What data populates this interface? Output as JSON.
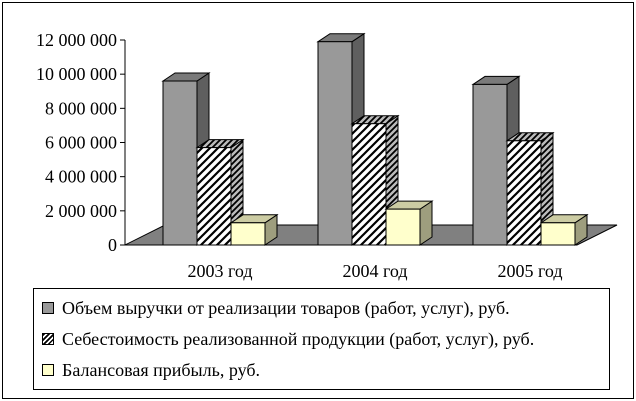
{
  "chart_data": {
    "type": "bar",
    "categories": [
      "2003 год",
      "2004 год",
      "2005 год"
    ],
    "series": [
      {
        "name": "Объем выручки от реализации товаров (работ, услуг),  руб.",
        "values": [
          9600000,
          11900000,
          9400000
        ],
        "color": "#999999",
        "pattern": "solid"
      },
      {
        "name": "Себестоимость реализованной продукции (работ, услуг), руб.",
        "values": [
          5700000,
          7100000,
          6100000
        ],
        "color": "#ffffff",
        "pattern": "hatch"
      },
      {
        "name": "Балансовая прибыль, руб.",
        "values": [
          1300000,
          2100000,
          1300000
        ],
        "color": "#ffffcc",
        "pattern": "solid"
      }
    ],
    "yticks": [
      "0",
      "2 000 000",
      "4 000 000",
      "6 000 000",
      "8 000 000",
      "10 000 000",
      "12 000 000"
    ],
    "ylim": [
      0,
      12000000
    ],
    "legend_position": "bottom",
    "grid": false
  }
}
